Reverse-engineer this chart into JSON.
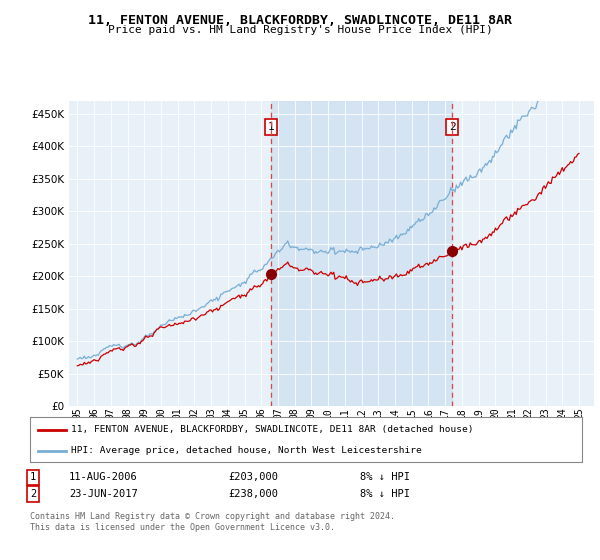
{
  "title1": "11, FENTON AVENUE, BLACKFORDBY, SWADLINCOTE, DE11 8AR",
  "title2": "Price paid vs. HM Land Registry's House Price Index (HPI)",
  "legend_line1": "11, FENTON AVENUE, BLACKFORDBY, SWADLINCOTE, DE11 8AR (detached house)",
  "legend_line2": "HPI: Average price, detached house, North West Leicestershire",
  "annotation1": {
    "label": "1",
    "date": "11-AUG-2006",
    "price": "£203,000",
    "note": "8% ↓ HPI"
  },
  "annotation2": {
    "label": "2",
    "date": "23-JUN-2017",
    "price": "£238,000",
    "note": "8% ↓ HPI"
  },
  "footer": "Contains HM Land Registry data © Crown copyright and database right 2024.\nThis data is licensed under the Open Government Licence v3.0.",
  "ylim": [
    0,
    470000
  ],
  "yticks": [
    0,
    50000,
    100000,
    150000,
    200000,
    250000,
    300000,
    350000,
    400000,
    450000
  ],
  "red_color": "#cc0000",
  "blue_color": "#7aaed4",
  "vline_color": "#dd4444",
  "shade_color": "#ccdff0",
  "sale1_year": 2006.625,
  "sale1_price": 203000,
  "sale2_year": 2017.458,
  "sale2_price": 238000,
  "xstart": 1995,
  "xend": 2025
}
